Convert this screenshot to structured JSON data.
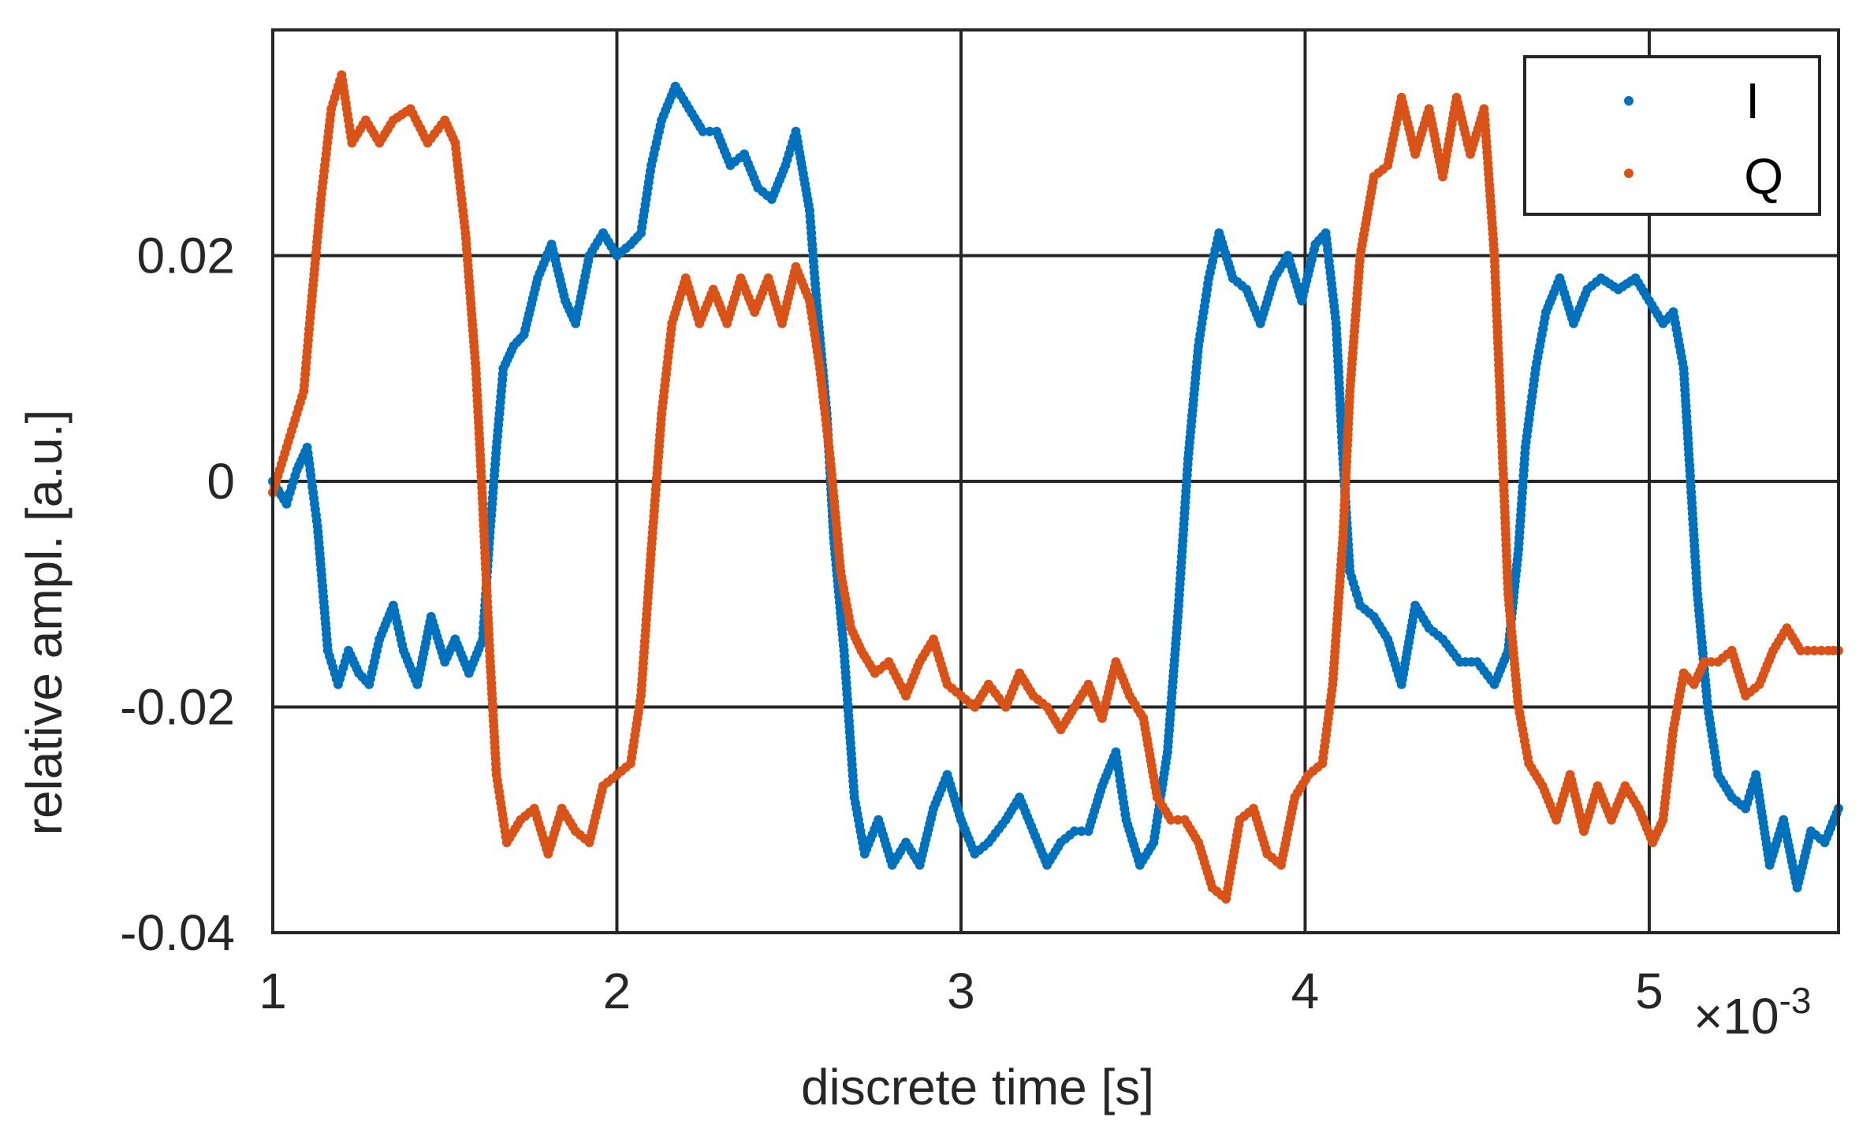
{
  "chart_data": {
    "type": "scatter",
    "title": "",
    "xlabel": "discrete time [s]",
    "ylabel": "relative ampl. [a.u.]",
    "x_exponent_label": "×10",
    "x_exponent": "-3",
    "xlim": [
      1,
      5.55
    ],
    "ylim": [
      -0.04,
      0.04
    ],
    "x_ticks": [
      1,
      2,
      3,
      4,
      5
    ],
    "x_tick_labels": [
      "1",
      "2",
      "3",
      "4",
      "5"
    ],
    "y_ticks": [
      -0.04,
      -0.02,
      0,
      0.02
    ],
    "y_tick_labels": [
      "-0.04",
      "-0.02",
      "0",
      "0.02"
    ],
    "grid": true,
    "legend_placement": "top-right",
    "series": [
      {
        "name": "I",
        "color": "#0072BD",
        "points": [
          [
            1.0,
            0.0
          ],
          [
            1.04,
            -0.002
          ],
          [
            1.07,
            0.001
          ],
          [
            1.1,
            0.003
          ],
          [
            1.13,
            -0.004
          ],
          [
            1.16,
            -0.015
          ],
          [
            1.19,
            -0.018
          ],
          [
            1.22,
            -0.015
          ],
          [
            1.25,
            -0.017
          ],
          [
            1.28,
            -0.018
          ],
          [
            1.31,
            -0.014
          ],
          [
            1.35,
            -0.011
          ],
          [
            1.38,
            -0.015
          ],
          [
            1.42,
            -0.018
          ],
          [
            1.46,
            -0.012
          ],
          [
            1.5,
            -0.016
          ],
          [
            1.53,
            -0.014
          ],
          [
            1.57,
            -0.017
          ],
          [
            1.61,
            -0.014
          ],
          [
            1.63,
            -0.005
          ],
          [
            1.65,
            0.003
          ],
          [
            1.67,
            0.01
          ],
          [
            1.7,
            0.012
          ],
          [
            1.73,
            0.013
          ],
          [
            1.77,
            0.018
          ],
          [
            1.81,
            0.021
          ],
          [
            1.85,
            0.016
          ],
          [
            1.88,
            0.014
          ],
          [
            1.92,
            0.02
          ],
          [
            1.96,
            0.022
          ],
          [
            2.0,
            0.02
          ],
          [
            2.04,
            0.021
          ],
          [
            2.07,
            0.022
          ],
          [
            2.1,
            0.028
          ],
          [
            2.13,
            0.032
          ],
          [
            2.17,
            0.035
          ],
          [
            2.21,
            0.033
          ],
          [
            2.25,
            0.031
          ],
          [
            2.29,
            0.031
          ],
          [
            2.33,
            0.028
          ],
          [
            2.37,
            0.029
          ],
          [
            2.41,
            0.026
          ],
          [
            2.45,
            0.025
          ],
          [
            2.49,
            0.028
          ],
          [
            2.52,
            0.031
          ],
          [
            2.56,
            0.024
          ],
          [
            2.58,
            0.016
          ],
          [
            2.61,
            0.006
          ],
          [
            2.63,
            -0.005
          ],
          [
            2.66,
            -0.015
          ],
          [
            2.69,
            -0.028
          ],
          [
            2.72,
            -0.033
          ],
          [
            2.76,
            -0.03
          ],
          [
            2.8,
            -0.034
          ],
          [
            2.84,
            -0.032
          ],
          [
            2.88,
            -0.034
          ],
          [
            2.92,
            -0.029
          ],
          [
            2.96,
            -0.026
          ],
          [
            3.0,
            -0.03
          ],
          [
            3.04,
            -0.033
          ],
          [
            3.08,
            -0.032
          ],
          [
            3.13,
            -0.03
          ],
          [
            3.17,
            -0.028
          ],
          [
            3.21,
            -0.031
          ],
          [
            3.25,
            -0.034
          ],
          [
            3.29,
            -0.032
          ],
          [
            3.33,
            -0.031
          ],
          [
            3.37,
            -0.031
          ],
          [
            3.41,
            -0.027
          ],
          [
            3.45,
            -0.024
          ],
          [
            3.48,
            -0.03
          ],
          [
            3.52,
            -0.034
          ],
          [
            3.56,
            -0.032
          ],
          [
            3.6,
            -0.024
          ],
          [
            3.63,
            -0.012
          ],
          [
            3.66,
            0.002
          ],
          [
            3.69,
            0.012
          ],
          [
            3.72,
            0.018
          ],
          [
            3.75,
            0.022
          ],
          [
            3.79,
            0.018
          ],
          [
            3.83,
            0.017
          ],
          [
            3.87,
            0.014
          ],
          [
            3.91,
            0.018
          ],
          [
            3.95,
            0.02
          ],
          [
            3.99,
            0.016
          ],
          [
            4.03,
            0.021
          ],
          [
            4.06,
            0.022
          ],
          [
            4.09,
            0.014
          ],
          [
            4.11,
            0.002
          ],
          [
            4.13,
            -0.008
          ],
          [
            4.16,
            -0.011
          ],
          [
            4.2,
            -0.012
          ],
          [
            4.24,
            -0.014
          ],
          [
            4.28,
            -0.018
          ],
          [
            4.32,
            -0.011
          ],
          [
            4.36,
            -0.013
          ],
          [
            4.4,
            -0.014
          ],
          [
            4.45,
            -0.016
          ],
          [
            4.5,
            -0.016
          ],
          [
            4.55,
            -0.018
          ],
          [
            4.59,
            -0.015
          ],
          [
            4.62,
            -0.006
          ],
          [
            4.64,
            0.003
          ],
          [
            4.67,
            0.01
          ],
          [
            4.7,
            0.015
          ],
          [
            4.74,
            0.018
          ],
          [
            4.78,
            0.014
          ],
          [
            4.82,
            0.017
          ],
          [
            4.86,
            0.018
          ],
          [
            4.91,
            0.017
          ],
          [
            4.96,
            0.018
          ],
          [
            5.0,
            0.016
          ],
          [
            5.04,
            0.014
          ],
          [
            5.07,
            0.015
          ],
          [
            5.1,
            0.01
          ],
          [
            5.12,
            0.0
          ],
          [
            5.14,
            -0.01
          ],
          [
            5.17,
            -0.02
          ],
          [
            5.2,
            -0.026
          ],
          [
            5.24,
            -0.028
          ],
          [
            5.28,
            -0.029
          ],
          [
            5.31,
            -0.026
          ],
          [
            5.35,
            -0.034
          ],
          [
            5.39,
            -0.03
          ],
          [
            5.43,
            -0.036
          ],
          [
            5.47,
            -0.031
          ],
          [
            5.51,
            -0.032
          ],
          [
            5.55,
            -0.029
          ]
        ]
      },
      {
        "name": "Q",
        "color": "#D95319",
        "points": [
          [
            1.0,
            -0.001
          ],
          [
            1.03,
            0.002
          ],
          [
            1.06,
            0.005
          ],
          [
            1.09,
            0.008
          ],
          [
            1.11,
            0.015
          ],
          [
            1.14,
            0.025
          ],
          [
            1.17,
            0.033
          ],
          [
            1.2,
            0.036
          ],
          [
            1.23,
            0.03
          ],
          [
            1.27,
            0.032
          ],
          [
            1.31,
            0.03
          ],
          [
            1.35,
            0.032
          ],
          [
            1.4,
            0.033
          ],
          [
            1.45,
            0.03
          ],
          [
            1.5,
            0.032
          ],
          [
            1.53,
            0.03
          ],
          [
            1.56,
            0.022
          ],
          [
            1.59,
            0.01
          ],
          [
            1.61,
            -0.002
          ],
          [
            1.63,
            -0.015
          ],
          [
            1.65,
            -0.026
          ],
          [
            1.68,
            -0.032
          ],
          [
            1.72,
            -0.03
          ],
          [
            1.76,
            -0.029
          ],
          [
            1.8,
            -0.033
          ],
          [
            1.84,
            -0.029
          ],
          [
            1.88,
            -0.031
          ],
          [
            1.92,
            -0.032
          ],
          [
            1.96,
            -0.027
          ],
          [
            2.0,
            -0.026
          ],
          [
            2.04,
            -0.025
          ],
          [
            2.07,
            -0.019
          ],
          [
            2.1,
            -0.006
          ],
          [
            2.13,
            0.006
          ],
          [
            2.16,
            0.014
          ],
          [
            2.2,
            0.018
          ],
          [
            2.24,
            0.014
          ],
          [
            2.28,
            0.017
          ],
          [
            2.32,
            0.014
          ],
          [
            2.36,
            0.018
          ],
          [
            2.4,
            0.015
          ],
          [
            2.44,
            0.018
          ],
          [
            2.48,
            0.014
          ],
          [
            2.52,
            0.019
          ],
          [
            2.56,
            0.016
          ],
          [
            2.59,
            0.01
          ],
          [
            2.62,
            0.002
          ],
          [
            2.65,
            -0.008
          ],
          [
            2.68,
            -0.013
          ],
          [
            2.71,
            -0.015
          ],
          [
            2.75,
            -0.017
          ],
          [
            2.79,
            -0.016
          ],
          [
            2.84,
            -0.019
          ],
          [
            2.88,
            -0.016
          ],
          [
            2.92,
            -0.014
          ],
          [
            2.96,
            -0.018
          ],
          [
            3.0,
            -0.019
          ],
          [
            3.04,
            -0.02
          ],
          [
            3.08,
            -0.018
          ],
          [
            3.13,
            -0.02
          ],
          [
            3.17,
            -0.017
          ],
          [
            3.21,
            -0.019
          ],
          [
            3.25,
            -0.02
          ],
          [
            3.29,
            -0.022
          ],
          [
            3.33,
            -0.02
          ],
          [
            3.37,
            -0.018
          ],
          [
            3.41,
            -0.021
          ],
          [
            3.45,
            -0.016
          ],
          [
            3.49,
            -0.019
          ],
          [
            3.53,
            -0.021
          ],
          [
            3.57,
            -0.028
          ],
          [
            3.61,
            -0.03
          ],
          [
            3.65,
            -0.03
          ],
          [
            3.69,
            -0.032
          ],
          [
            3.73,
            -0.036
          ],
          [
            3.77,
            -0.037
          ],
          [
            3.81,
            -0.03
          ],
          [
            3.85,
            -0.029
          ],
          [
            3.89,
            -0.033
          ],
          [
            3.93,
            -0.034
          ],
          [
            3.97,
            -0.028
          ],
          [
            4.01,
            -0.026
          ],
          [
            4.05,
            -0.025
          ],
          [
            4.08,
            -0.018
          ],
          [
            4.11,
            -0.005
          ],
          [
            4.13,
            0.008
          ],
          [
            4.16,
            0.02
          ],
          [
            4.2,
            0.027
          ],
          [
            4.24,
            0.028
          ],
          [
            4.28,
            0.034
          ],
          [
            4.32,
            0.029
          ],
          [
            4.36,
            0.033
          ],
          [
            4.4,
            0.027
          ],
          [
            4.44,
            0.034
          ],
          [
            4.48,
            0.029
          ],
          [
            4.52,
            0.033
          ],
          [
            4.55,
            0.02
          ],
          [
            4.57,
            0.005
          ],
          [
            4.59,
            -0.01
          ],
          [
            4.62,
            -0.02
          ],
          [
            4.65,
            -0.025
          ],
          [
            4.69,
            -0.027
          ],
          [
            4.73,
            -0.03
          ],
          [
            4.77,
            -0.026
          ],
          [
            4.81,
            -0.031
          ],
          [
            4.85,
            -0.027
          ],
          [
            4.89,
            -0.03
          ],
          [
            4.93,
            -0.027
          ],
          [
            4.97,
            -0.029
          ],
          [
            5.01,
            -0.032
          ],
          [
            5.04,
            -0.03
          ],
          [
            5.07,
            -0.022
          ],
          [
            5.1,
            -0.017
          ],
          [
            5.13,
            -0.018
          ],
          [
            5.16,
            -0.016
          ],
          [
            5.2,
            -0.016
          ],
          [
            5.24,
            -0.015
          ],
          [
            5.28,
            -0.019
          ],
          [
            5.32,
            -0.018
          ],
          [
            5.36,
            -0.015
          ],
          [
            5.4,
            -0.013
          ],
          [
            5.44,
            -0.015
          ],
          [
            5.48,
            -0.015
          ],
          [
            5.52,
            -0.015
          ],
          [
            5.55,
            -0.015
          ]
        ]
      }
    ]
  }
}
